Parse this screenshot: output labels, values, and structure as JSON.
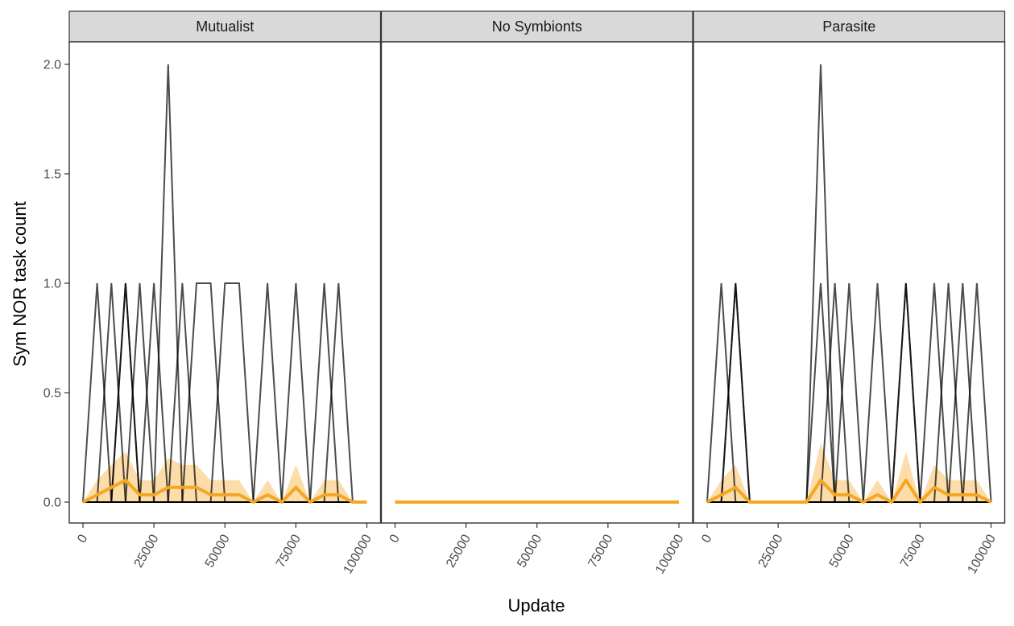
{
  "chart_data": {
    "type": "line",
    "ylabel": "Sym NOR task count",
    "xlabel": "Update",
    "xlim": [
      0,
      100000
    ],
    "ylim": [
      0,
      2
    ],
    "y_ticks": [
      "0.0",
      "0.5",
      "1.0",
      "1.5",
      "2.0"
    ],
    "y_tick_values": [
      0,
      0.5,
      1,
      1.5,
      2
    ],
    "x_ticks": [
      "0",
      "25000",
      "50000",
      "75000",
      "100000"
    ],
    "x_tick_values": [
      0,
      25000,
      50000,
      75000,
      100000
    ],
    "colors": {
      "runs": "#000000",
      "mean": "#f5a623",
      "ribbon": "#fbd79b",
      "strip": "#d9d9d9"
    },
    "facets": [
      {
        "name": "Mutualist",
        "x": [
          0,
          5000,
          10000,
          15000,
          20000,
          25000,
          30000,
          35000,
          40000,
          45000,
          50000,
          55000,
          60000,
          65000,
          70000,
          75000,
          80000,
          85000,
          90000,
          95000,
          100000
        ],
        "runs": [
          [
            0,
            1,
            0,
            0,
            0,
            0,
            0,
            0,
            0,
            0,
            0,
            0,
            0,
            0,
            0,
            0,
            0,
            0,
            0,
            0,
            0
          ],
          [
            0,
            0,
            1,
            0,
            0,
            0,
            0,
            0,
            0,
            0,
            0,
            0,
            0,
            0,
            0,
            0,
            0,
            0,
            0,
            0,
            0
          ],
          [
            0,
            0,
            0,
            1,
            0,
            0,
            0,
            0,
            0,
            0,
            0,
            0,
            0,
            0,
            0,
            0,
            0,
            0,
            0,
            0,
            0
          ],
          [
            0,
            0,
            0,
            1,
            0,
            0,
            0,
            0,
            0,
            0,
            0,
            0,
            0,
            0,
            0,
            0,
            0,
            0,
            0,
            0,
            0
          ],
          [
            0,
            0,
            0,
            0,
            1,
            0,
            0,
            0,
            0,
            0,
            0,
            0,
            0,
            0,
            0,
            0,
            0,
            0,
            0,
            0,
            0
          ],
          [
            0,
            0,
            0,
            0,
            0,
            1,
            0,
            0,
            0,
            0,
            0,
            0,
            0,
            0,
            0,
            0,
            0,
            0,
            0,
            0,
            0
          ],
          [
            0,
            0,
            0,
            0,
            0,
            0,
            2,
            0,
            0,
            0,
            0,
            0,
            0,
            0,
            0,
            0,
            0,
            0,
            0,
            0,
            0
          ],
          [
            0,
            0,
            0,
            0,
            0,
            0,
            0,
            1,
            0,
            0,
            0,
            0,
            0,
            0,
            0,
            0,
            0,
            0,
            0,
            0,
            0
          ],
          [
            0,
            0,
            0,
            0,
            0,
            0,
            0,
            0,
            1,
            1,
            0,
            0,
            0,
            0,
            0,
            0,
            0,
            0,
            0,
            0,
            0
          ],
          [
            0,
            0,
            0,
            0,
            0,
            0,
            0,
            0,
            0,
            0,
            1,
            1,
            0,
            0,
            0,
            0,
            0,
            0,
            0,
            0,
            0
          ],
          [
            0,
            0,
            0,
            0,
            0,
            0,
            0,
            0,
            0,
            0,
            0,
            0,
            0,
            1,
            0,
            0,
            0,
            0,
            0,
            0,
            0
          ],
          [
            0,
            0,
            0,
            0,
            0,
            0,
            0,
            0,
            0,
            0,
            0,
            0,
            0,
            0,
            0,
            1,
            0,
            0,
            0,
            0,
            0
          ],
          [
            0,
            0,
            0,
            0,
            0,
            0,
            0,
            0,
            0,
            0,
            0,
            0,
            0,
            0,
            0,
            0,
            0,
            1,
            0,
            0,
            0
          ],
          [
            0,
            0,
            0,
            0,
            0,
            0,
            0,
            0,
            0,
            0,
            0,
            0,
            0,
            0,
            0,
            0,
            0,
            0,
            1,
            0,
            0
          ]
        ],
        "mean": [
          0,
          0.033,
          0.067,
          0.1,
          0.033,
          0.033,
          0.067,
          0.067,
          0.067,
          0.033,
          0.033,
          0.033,
          0,
          0.033,
          0,
          0.067,
          0,
          0.033,
          0.033,
          0,
          0
        ],
        "lower": [
          0,
          0,
          0,
          0,
          0,
          0,
          0,
          0,
          0,
          0,
          0,
          0,
          0,
          0,
          0,
          0,
          0,
          0,
          0,
          0,
          0
        ],
        "upper": [
          0,
          0.1,
          0.17,
          0.23,
          0.1,
          0.1,
          0.2,
          0.17,
          0.17,
          0.1,
          0.1,
          0.1,
          0,
          0.1,
          0,
          0.17,
          0,
          0.1,
          0.1,
          0,
          0
        ]
      },
      {
        "name": "No Symbionts",
        "x": [
          0,
          5000,
          10000,
          15000,
          20000,
          25000,
          30000,
          35000,
          40000,
          45000,
          50000,
          55000,
          60000,
          65000,
          70000,
          75000,
          80000,
          85000,
          90000,
          95000,
          100000
        ],
        "runs": [],
        "mean": [
          0,
          0,
          0,
          0,
          0,
          0,
          0,
          0,
          0,
          0,
          0,
          0,
          0,
          0,
          0,
          0,
          0,
          0,
          0,
          0,
          0
        ],
        "lower": [
          0,
          0,
          0,
          0,
          0,
          0,
          0,
          0,
          0,
          0,
          0,
          0,
          0,
          0,
          0,
          0,
          0,
          0,
          0,
          0,
          0
        ],
        "upper": [
          0,
          0,
          0,
          0,
          0,
          0,
          0,
          0,
          0,
          0,
          0,
          0,
          0,
          0,
          0,
          0,
          0,
          0,
          0,
          0,
          0
        ]
      },
      {
        "name": "Parasite",
        "x": [
          0,
          5000,
          10000,
          15000,
          20000,
          25000,
          30000,
          35000,
          40000,
          45000,
          50000,
          55000,
          60000,
          65000,
          70000,
          75000,
          80000,
          85000,
          90000,
          95000,
          100000
        ],
        "runs": [
          [
            0,
            1,
            0,
            0,
            0,
            0,
            0,
            0,
            0,
            0,
            0,
            0,
            0,
            0,
            0,
            0,
            0,
            0,
            0,
            0,
            0
          ],
          [
            0,
            0,
            1,
            0,
            0,
            0,
            0,
            0,
            0,
            0,
            0,
            0,
            0,
            0,
            0,
            0,
            0,
            0,
            0,
            0,
            0
          ],
          [
            0,
            0,
            1,
            0,
            0,
            0,
            0,
            0,
            0,
            0,
            0,
            0,
            0,
            0,
            0,
            0,
            0,
            0,
            0,
            0,
            0
          ],
          [
            0,
            0,
            0,
            0,
            0,
            0,
            0,
            0,
            1,
            0,
            0,
            0,
            0,
            0,
            0,
            0,
            0,
            0,
            0,
            0,
            0
          ],
          [
            0,
            0,
            0,
            0,
            0,
            0,
            0,
            0,
            2,
            0,
            0,
            0,
            0,
            0,
            0,
            0,
            0,
            0,
            0,
            0,
            0
          ],
          [
            0,
            0,
            0,
            0,
            0,
            0,
            0,
            0,
            0,
            1,
            0,
            0,
            0,
            0,
            0,
            0,
            0,
            0,
            0,
            0,
            0
          ],
          [
            0,
            0,
            0,
            0,
            0,
            0,
            0,
            0,
            0,
            0,
            1,
            0,
            0,
            0,
            0,
            0,
            0,
            0,
            0,
            0,
            0
          ],
          [
            0,
            0,
            0,
            0,
            0,
            0,
            0,
            0,
            0,
            0,
            0,
            0,
            1,
            0,
            0,
            0,
            0,
            0,
            0,
            0,
            0
          ],
          [
            0,
            0,
            0,
            0,
            0,
            0,
            0,
            0,
            0,
            0,
            0,
            0,
            0,
            0,
            1,
            0,
            0,
            0,
            0,
            0,
            0
          ],
          [
            0,
            0,
            0,
            0,
            0,
            0,
            0,
            0,
            0,
            0,
            0,
            0,
            0,
            0,
            1,
            0,
            0,
            0,
            0,
            0,
            0
          ],
          [
            0,
            0,
            0,
            0,
            0,
            0,
            0,
            0,
            0,
            0,
            0,
            0,
            0,
            0,
            0,
            0,
            1,
            0,
            0,
            0,
            0
          ],
          [
            0,
            0,
            0,
            0,
            0,
            0,
            0,
            0,
            0,
            0,
            0,
            0,
            0,
            0,
            0,
            0,
            0,
            1,
            0,
            0,
            0
          ],
          [
            0,
            0,
            0,
            0,
            0,
            0,
            0,
            0,
            0,
            0,
            0,
            0,
            0,
            0,
            0,
            0,
            0,
            0,
            1,
            0,
            0
          ],
          [
            0,
            0,
            0,
            0,
            0,
            0,
            0,
            0,
            0,
            0,
            0,
            0,
            0,
            0,
            0,
            0,
            0,
            0,
            0,
            1,
            0
          ]
        ],
        "mean": [
          0,
          0.033,
          0.067,
          0,
          0,
          0,
          0,
          0,
          0.1,
          0.033,
          0.033,
          0,
          0.033,
          0,
          0.1,
          0,
          0.067,
          0.033,
          0.033,
          0.033,
          0
        ],
        "lower": [
          0,
          0,
          0,
          0,
          0,
          0,
          0,
          0,
          0,
          0,
          0,
          0,
          0,
          0,
          0,
          0,
          0,
          0,
          0,
          0,
          0
        ],
        "upper": [
          0,
          0.1,
          0.17,
          0,
          0,
          0,
          0,
          0,
          0.27,
          0.1,
          0.1,
          0,
          0.1,
          0,
          0.23,
          0,
          0.17,
          0.1,
          0.1,
          0.1,
          0
        ]
      }
    ]
  }
}
